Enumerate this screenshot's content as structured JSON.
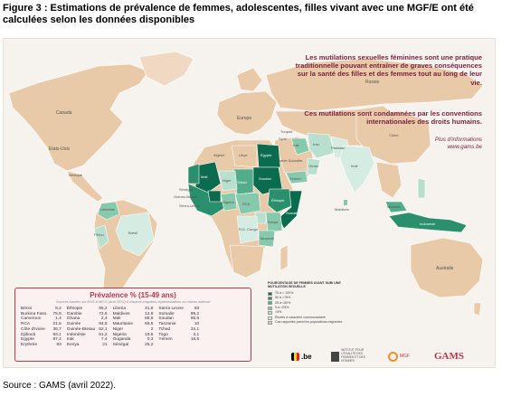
{
  "figure": {
    "title": "Figure 3 : Estimations de prévalence de femmes, adolescentes, filles vivant avec une MGF/E ont été calculées selon les données disponibles",
    "source": "Source : GAMS (avril 2022)."
  },
  "poster": {
    "tagline_1": "Les mutilations sexuelles féminines sont une pratique traditionnelle pouvant entraîner de graves conséquences sur la santé des filles et des femmes tout au long de leur vie.",
    "tagline_2": "Ces mutilations sont condamnées par les conventions internationales des droits humains.",
    "more_info_label": "Plus d'informations",
    "more_info_url": "www.gams.be"
  },
  "map_labels": [
    {
      "key": "canada",
      "text": "Canada"
    },
    {
      "key": "usa",
      "text": "Etats-Unis"
    },
    {
      "key": "europe",
      "text": "Europe"
    },
    {
      "key": "russie",
      "text": "Russie"
    },
    {
      "key": "chine",
      "text": "Chine"
    },
    {
      "key": "mexique",
      "text": "Mexique"
    },
    {
      "key": "colombie",
      "text": "Colombie"
    },
    {
      "key": "perou",
      "text": "Pérou"
    },
    {
      "key": "bresil",
      "text": "Brésil"
    },
    {
      "key": "australie",
      "text": "Australie"
    },
    {
      "key": "inde",
      "text": "Inde"
    },
    {
      "key": "iran",
      "text": "Iran"
    },
    {
      "key": "irak",
      "text": "Irak"
    },
    {
      "key": "turquie",
      "text": "Turquie"
    },
    {
      "key": "syrie",
      "text": "Syrie"
    },
    {
      "key": "libye",
      "text": "Libye"
    },
    {
      "key": "egypte",
      "text": "Égypte"
    },
    {
      "key": "soudan",
      "text": "Soudan"
    },
    {
      "key": "mali",
      "text": "Mali"
    },
    {
      "key": "niger",
      "text": "Niger"
    },
    {
      "key": "tchad",
      "text": "Tchad"
    },
    {
      "key": "nigeria",
      "text": "Nigeria"
    },
    {
      "key": "ethiopie",
      "text": "Éthiopie"
    },
    {
      "key": "somalie",
      "text": "Somalie"
    },
    {
      "key": "kenya",
      "text": "Kenya"
    },
    {
      "key": "tanzanie",
      "text": "Tanzanie"
    },
    {
      "key": "rdc",
      "text": "R.D. Congo"
    },
    {
      "key": "rca",
      "text": "RCA"
    },
    {
      "key": "yemen",
      "text": "Yémen"
    },
    {
      "key": "oman",
      "text": "Oman"
    },
    {
      "key": "arabie",
      "text": "Arabie Saoudite"
    },
    {
      "key": "pakistan",
      "text": "Pakistan"
    },
    {
      "key": "malaisie",
      "text": "Malaisie"
    },
    {
      "key": "indonesie",
      "text": "Indonésie"
    },
    {
      "key": "senegal",
      "text": "Sénégal"
    },
    {
      "key": "guinee",
      "text": "Guinée-Bissau"
    },
    {
      "key": "sierra",
      "text": "Sierra Leone"
    },
    {
      "key": "maldives",
      "text": "Maldives"
    },
    {
      "key": "algerie",
      "text": "Algérie"
    }
  ],
  "prevalence_table": {
    "title": "Prévalence % (15-49 ans)",
    "subtitle": "Sources basées sur DHS & MICS (avril 2022) & d'autres enquêtes représentatives au niveau national",
    "columns": [
      [
        {
          "country": "Bénin",
          "value": "9,2"
        },
        {
          "country": "Burkina Faso",
          "value": "75,8"
        },
        {
          "country": "Cameroun",
          "value": "1,4"
        },
        {
          "country": "RCA",
          "value": "21,6"
        },
        {
          "country": "Côte d'Ivoire",
          "value": "36,7"
        },
        {
          "country": "Djibouti",
          "value": "93,1"
        },
        {
          "country": "Egypte",
          "value": "87,2"
        },
        {
          "country": "Erythrée",
          "value": "83"
        }
      ],
      [
        {
          "country": "Éthiopie",
          "value": "65,2"
        },
        {
          "country": "Gambie",
          "value": "72,6"
        },
        {
          "country": "Ghana",
          "value": "2,4"
        },
        {
          "country": "Guinée",
          "value": "94,5"
        },
        {
          "country": "Guinée-Bissau",
          "value": "52,1"
        },
        {
          "country": "Indonésie",
          "value": "51,2"
        },
        {
          "country": "Irak",
          "value": "7,4"
        },
        {
          "country": "Kenya",
          "value": "21"
        }
      ],
      [
        {
          "country": "Liberia",
          "value": "31,8"
        },
        {
          "country": "Maldives",
          "value": "12,9"
        },
        {
          "country": "Mali",
          "value": "88,6"
        },
        {
          "country": "Mauritanie",
          "value": "66,6"
        },
        {
          "country": "Niger",
          "value": "2"
        },
        {
          "country": "Nigeria",
          "value": "19,5"
        },
        {
          "country": "Ouganda",
          "value": "0,3"
        },
        {
          "country": "Sénégal",
          "value": "25,2"
        }
      ],
      [
        {
          "country": "Sierra Leone",
          "value": "83"
        },
        {
          "country": "Somalie",
          "value": "99,2"
        },
        {
          "country": "Soudan",
          "value": "86,6"
        },
        {
          "country": "Tanzanie",
          "value": "10"
        },
        {
          "country": "Tchad",
          "value": "34,1"
        },
        {
          "country": "Togo",
          "value": "3,1"
        },
        {
          "country": "Yémen",
          "value": "18,5"
        }
      ]
    ]
  },
  "legend": {
    "title": "POURCENTAGE DE FEMMES AYANT SUBI UNE MUTILATION SEXUELLE",
    "items": [
      {
        "label": "75 à < 100%",
        "color": "#0b6b4f"
      },
      {
        "label": "50 à <75%",
        "color": "#2a8f6c"
      },
      {
        "label": "25 à <50%",
        "color": "#52ad8b"
      },
      {
        "label": "5 à <25%",
        "color": "#86c9ad"
      },
      {
        "label": "<5%",
        "color": "#b9e0cf"
      },
      {
        "label": "Études à caractère communautaire",
        "color": "#d4ece2"
      },
      {
        "label": "Cas rapportés parmi les populations migrantes",
        "color": "#e8c9a8"
      }
    ]
  },
  "logos": {
    "be": ".be",
    "institute": "INSTITUT POUR L'ÉGALITÉ DES FEMMES ET DES HOMMES",
    "mgf": "MGF",
    "gams": "GAMS"
  },
  "colors": {
    "accent": "#b8374d",
    "tagline": "#7a1f3d",
    "land": "#e8c9a8",
    "ocean": "#f6f3ef",
    "prevalence_high": "#0b6b4f",
    "prevalence_low": "#b9e0cf"
  }
}
